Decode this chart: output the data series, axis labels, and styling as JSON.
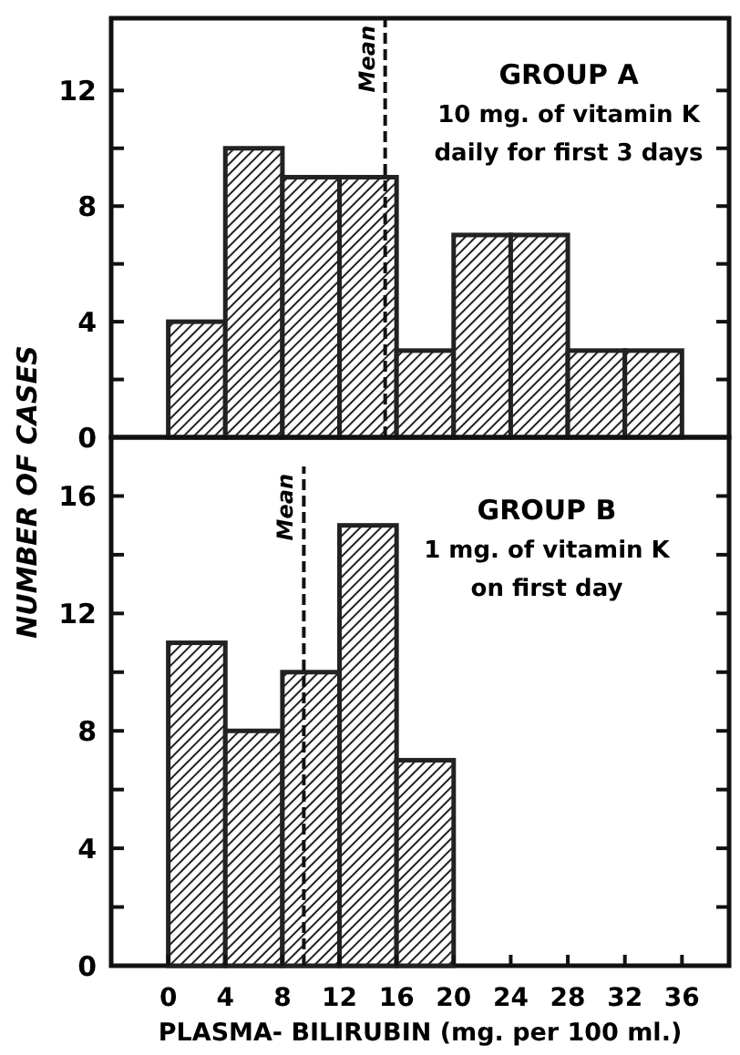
{
  "chart_data": [
    {
      "type": "histogram",
      "ylabel": "NUMBER OF CASES",
      "bins": [
        0,
        4,
        8,
        12,
        16,
        20,
        24,
        28,
        32,
        36
      ],
      "values": [
        4,
        10,
        9,
        9,
        3,
        7,
        7,
        3,
        3
      ],
      "color": "#222222",
      "xlim": [
        -4,
        39.3
      ],
      "ylim": [
        0,
        14.5
      ],
      "yticks": [
        0,
        {
          "value": 2,
          "label": null
        },
        4,
        {
          "value": 6,
          "label": null
        },
        8,
        {
          "value": 10,
          "label": null
        },
        12
      ],
      "tick_labels": "y",
      "ref_lines": [
        {
          "axis": "x",
          "value": 15.2,
          "label": "Mean",
          "line_style": "dashed"
        }
      ],
      "annotations": [
        "GROUP A",
        "10 mg. of vitamin K",
        "daily for first 3 days"
      ],
      "grid": false
    },
    {
      "type": "histogram",
      "xlabel": "PLASMA- BILIRUBIN (mg. per 100 ml.)",
      "bins": [
        0,
        4,
        8,
        12,
        16,
        20
      ],
      "values": [
        11,
        8,
        10,
        15,
        7
      ],
      "color": "#222222",
      "xlim": [
        -4,
        39.3
      ],
      "ylim": [
        0,
        18
      ],
      "xticks": [
        0,
        4,
        8,
        12,
        16,
        20,
        24,
        28,
        32,
        36
      ],
      "yticks": [
        0,
        {
          "value": 2,
          "label": null
        },
        4,
        {
          "value": 6,
          "label": null
        },
        8,
        {
          "value": 10,
          "label": null
        },
        12,
        {
          "value": 14,
          "label": null
        },
        16
      ],
      "ref_lines": [
        {
          "axis": "x",
          "value": 9.5,
          "label": "Mean",
          "line_style": "dashed"
        }
      ],
      "annotations": [
        "GROUP B",
        "1 mg. of vitamin K",
        "on first day"
      ],
      "grid": false
    }
  ]
}
